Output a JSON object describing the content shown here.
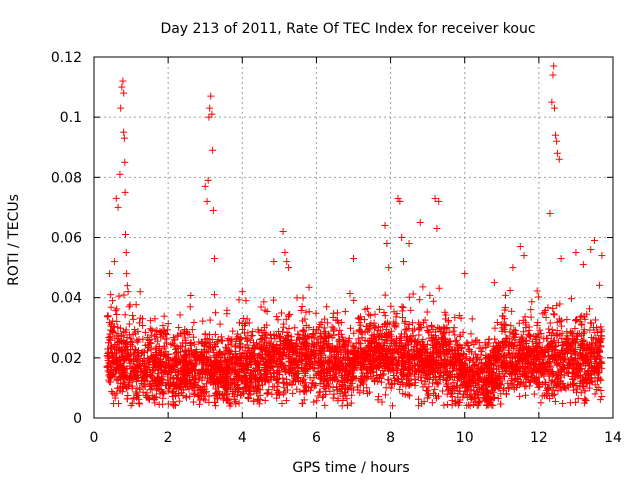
{
  "chart_data": {
    "type": "scatter",
    "title": "Day 213 of 2011, Rate Of TEC Index for receiver kouc",
    "xlabel": "GPS time / hours",
    "ylabel": "ROTI / TECUs",
    "xlim": [
      0,
      14
    ],
    "ylim": [
      0,
      0.12
    ],
    "xticks": [
      0,
      2,
      4,
      6,
      8,
      10,
      12,
      14
    ],
    "yticks": [
      0,
      0.02,
      0.04,
      0.06,
      0.08,
      0.1,
      0.12
    ],
    "xtick_labels": [
      "0",
      "2",
      "4",
      "6",
      "8",
      "10",
      "12",
      "14"
    ],
    "ytick_labels": [
      "0",
      "0.02",
      "0.04",
      "0.06",
      "0.08",
      "0.1",
      "0.12"
    ],
    "grid": true,
    "marker": "+",
    "color": "#ff0000",
    "series": [
      {
        "x": [
          0.38,
          0.42,
          0.45,
          0.5,
          0.55,
          0.6,
          0.65,
          0.7,
          0.72,
          0.75,
          0.78,
          0.8,
          0.8,
          0.82,
          0.83,
          0.84,
          0.85,
          0.87,
          0.88,
          0.9,
          0.92,
          0.95,
          3.0,
          3.05,
          3.08,
          3.1,
          3.12,
          3.15,
          3.18,
          3.2,
          3.22,
          3.25,
          3.25,
          3.28,
          4.0,
          4.1,
          4.85,
          5.1,
          5.15,
          5.2,
          5.25,
          7.0,
          7.85,
          7.9,
          7.95,
          8.2,
          8.25,
          8.3,
          8.35,
          8.5,
          8.8,
          9.2,
          9.25,
          9.3,
          10.0,
          10.8,
          11.3,
          11.5,
          11.6,
          12.3,
          12.35,
          12.38,
          12.4,
          12.42,
          12.45,
          12.48,
          12.5,
          12.55,
          12.6,
          13.0,
          13.2,
          13.4,
          13.5,
          13.7
        ],
        "y": [
          0.034,
          0.048,
          0.041,
          0.039,
          0.052,
          0.073,
          0.07,
          0.081,
          0.103,
          0.11,
          0.112,
          0.108,
          0.095,
          0.093,
          0.085,
          0.075,
          0.061,
          0.055,
          0.048,
          0.044,
          0.042,
          0.037,
          0.077,
          0.072,
          0.079,
          0.1,
          0.103,
          0.107,
          0.101,
          0.089,
          0.069,
          0.053,
          0.041,
          0.035,
          0.042,
          0.039,
          0.052,
          0.062,
          0.055,
          0.052,
          0.05,
          0.053,
          0.064,
          0.058,
          0.05,
          0.073,
          0.072,
          0.06,
          0.052,
          0.058,
          0.065,
          0.073,
          0.063,
          0.072,
          0.048,
          0.045,
          0.05,
          0.057,
          0.054,
          0.068,
          0.105,
          0.114,
          0.117,
          0.103,
          0.094,
          0.092,
          0.088,
          0.086,
          0.053,
          0.055,
          0.051,
          0.056,
          0.059,
          0.054
        ]
      }
    ]
  }
}
